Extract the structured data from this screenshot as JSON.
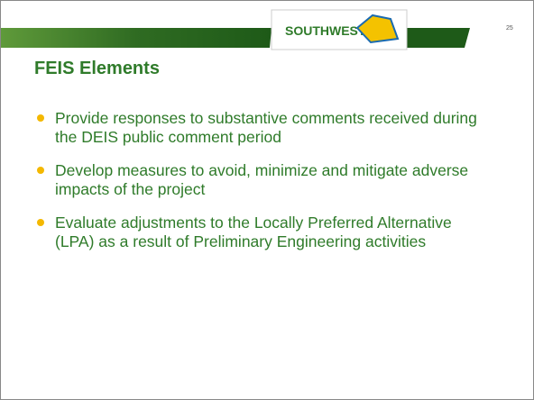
{
  "header": {
    "logo": "SOUTHWEST",
    "slide_number": "25"
  },
  "title": "FEIS Elements",
  "bullets": [
    "Provide responses to substantive comments received during the DEIS public comment period",
    "Develop measures to avoid, minimize and mitigate adverse impacts of the project",
    "Evaluate adjustments to the Locally Preferred Alternative (LPA) as a result of Preliminary Engineering activities"
  ]
}
